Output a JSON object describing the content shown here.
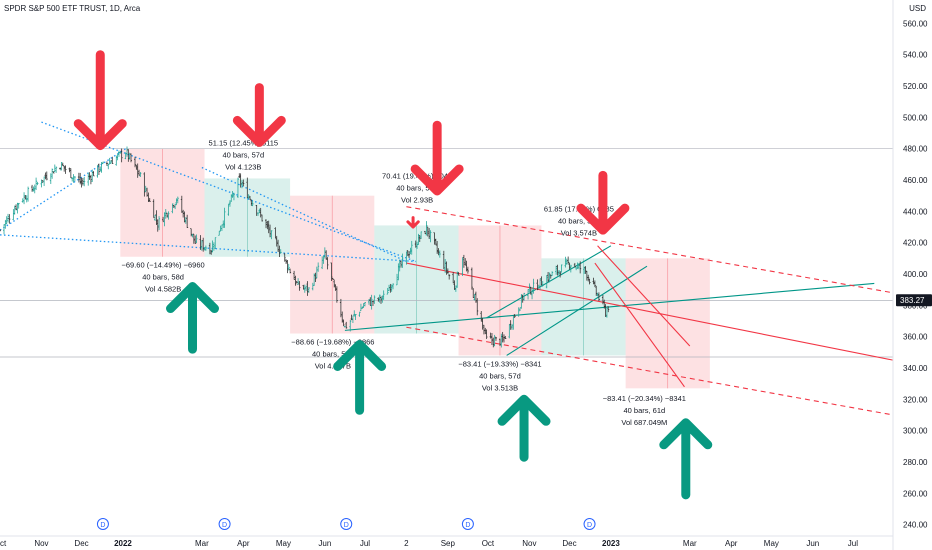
{
  "chart_data": {
    "type": "candlestick",
    "title": "SPDR S&P 500 ETF TRUST, 1D, Arca",
    "currency": "USD",
    "y_ticks": [
      240,
      260,
      280,
      300,
      320,
      340,
      360,
      380,
      400,
      420,
      440,
      460,
      480,
      500,
      520,
      540,
      560
    ],
    "ylim": [
      234,
      566
    ],
    "x_ticks": [
      "Oct",
      "Nov",
      "Dec",
      "2022",
      "Mar",
      "Apr",
      "May",
      "Jun",
      "Jul",
      "2",
      "Sep",
      "Oct",
      "Nov",
      "Dec",
      "2023",
      "Mar",
      "Apr",
      "May",
      "Jun",
      "Jul"
    ],
    "x_tick_dates": [
      "2021-10-01",
      "2021-11-01",
      "2021-12-01",
      "2022-01-01",
      "2022-03-01",
      "2022-04-01",
      "2022-05-01",
      "2022-06-01",
      "2022-07-01",
      "2022-08-01",
      "2022-09-01",
      "2022-10-01",
      "2022-11-01",
      "2022-12-01",
      "2023-01-01",
      "2023-03-01",
      "2023-04-01",
      "2023-05-01",
      "2023-06-01",
      "2023-07-01"
    ],
    "x_range": [
      "2021-10-01",
      "2023-07-31"
    ],
    "dividend_markers": [
      "2021-12-17",
      "2022-03-18",
      "2022-06-17",
      "2022-09-16",
      "2022-12-16"
    ],
    "dividend_label": "D",
    "last_price": "383.27",
    "price_series": {
      "color_up": "#26a69a",
      "color_down": "#333333",
      "closes": [
        {
          "x": "2021-10-01",
          "y": 428
        },
        {
          "x": "2021-10-15",
          "y": 446
        },
        {
          "x": "2021-11-01",
          "y": 460
        },
        {
          "x": "2021-11-15",
          "y": 470
        },
        {
          "x": "2021-12-01",
          "y": 458
        },
        {
          "x": "2021-12-15",
          "y": 468
        },
        {
          "x": "2022-01-03",
          "y": 478
        },
        {
          "x": "2022-01-14",
          "y": 462
        },
        {
          "x": "2022-01-27",
          "y": 432
        },
        {
          "x": "2022-02-10",
          "y": 448
        },
        {
          "x": "2022-02-24",
          "y": 420
        },
        {
          "x": "2022-03-08",
          "y": 416
        },
        {
          "x": "2022-03-29",
          "y": 460
        },
        {
          "x": "2022-04-12",
          "y": 440
        },
        {
          "x": "2022-04-29",
          "y": 414
        },
        {
          "x": "2022-05-12",
          "y": 392
        },
        {
          "x": "2022-05-20",
          "y": 390
        },
        {
          "x": "2022-06-01",
          "y": 412
        },
        {
          "x": "2022-06-16",
          "y": 366
        },
        {
          "x": "2022-07-01",
          "y": 381
        },
        {
          "x": "2022-07-15",
          "y": 385
        },
        {
          "x": "2022-08-01",
          "y": 412
        },
        {
          "x": "2022-08-16",
          "y": 429
        },
        {
          "x": "2022-09-06",
          "y": 392
        },
        {
          "x": "2022-09-12",
          "y": 411
        },
        {
          "x": "2022-09-30",
          "y": 358
        },
        {
          "x": "2022-10-12",
          "y": 357
        },
        {
          "x": "2022-10-28",
          "y": 387
        },
        {
          "x": "2022-11-15",
          "y": 398
        },
        {
          "x": "2022-12-01",
          "y": 407
        },
        {
          "x": "2022-12-13",
          "y": 402
        },
        {
          "x": "2022-12-28",
          "y": 376
        },
        {
          "x": "2023-01-01",
          "y": 383
        }
      ]
    },
    "range_boxes": [
      {
        "from": "2021-12-30",
        "to": "2022-03-03",
        "top": 480,
        "bottom": 411,
        "kind": "down"
      },
      {
        "from": "2022-03-03",
        "to": "2022-05-06",
        "top": 461,
        "bottom": 411,
        "kind": "up"
      },
      {
        "from": "2022-05-06",
        "to": "2022-07-08",
        "top": 450,
        "bottom": 362,
        "kind": "down"
      },
      {
        "from": "2022-07-08",
        "to": "2022-09-09",
        "top": 431,
        "bottom": 362,
        "kind": "up"
      },
      {
        "from": "2022-09-09",
        "to": "2022-11-10",
        "top": 431,
        "bottom": 348,
        "kind": "down"
      },
      {
        "from": "2022-11-10",
        "to": "2023-01-12",
        "top": 410,
        "bottom": 348,
        "kind": "up"
      },
      {
        "from": "2023-01-12",
        "to": "2023-03-16",
        "top": 410,
        "bottom": 327,
        "kind": "down"
      }
    ],
    "trend_lines": [
      {
        "from": [
          "2021-10-01",
          428
        ],
        "to": [
          "2022-01-03",
          480
        ],
        "color": "#2196f3",
        "style": "dotted"
      },
      {
        "from": [
          "2021-10-01",
          425
        ],
        "to": [
          "2022-08-08",
          408
        ],
        "color": "#2196f3",
        "style": "dotted"
      },
      {
        "from": [
          "2021-11-01",
          497
        ],
        "to": [
          "2022-08-08",
          408
        ],
        "color": "#2196f3",
        "style": "dotted"
      },
      {
        "from": [
          "2022-03-01",
          468
        ],
        "to": [
          "2022-08-01",
          408
        ],
        "color": "#2196f3",
        "style": "dotted"
      },
      {
        "from": [
          "2022-06-16",
          364
        ],
        "to": [
          "2023-07-17",
          394
        ],
        "color": "#009688",
        "style": "solid"
      },
      {
        "from": [
          "2022-10-15",
          348
        ],
        "to": [
          "2023-01-28",
          405
        ],
        "color": "#009688",
        "style": "solid"
      },
      {
        "from": [
          "2022-09-30",
          372
        ],
        "to": [
          "2023-01-01",
          418
        ],
        "color": "#009688",
        "style": "solid"
      },
      {
        "from": [
          "2022-08-01",
          407
        ],
        "to": [
          "2023-07-31",
          345
        ],
        "color": "#f23645",
        "style": "solid"
      },
      {
        "from": [
          "2022-08-01",
          443
        ],
        "to": [
          "2023-07-31",
          388
        ],
        "color": "#f23645",
        "style": "dashed"
      },
      {
        "from": [
          "2022-08-01",
          366
        ],
        "to": [
          "2023-07-31",
          310
        ],
        "color": "#f23645",
        "style": "dashed"
      },
      {
        "from": [
          "2022-12-22",
          418
        ],
        "to": [
          "2023-03-01",
          354
        ],
        "color": "#f23645",
        "style": "solid"
      },
      {
        "from": [
          "2022-12-20",
          407
        ],
        "to": [
          "2023-02-25",
          328
        ],
        "color": "#f23645",
        "style": "solid"
      }
    ],
    "horizontal_lines": [
      {
        "y": 480
      },
      {
        "y": 383
      },
      {
        "y": 347
      }
    ],
    "annotations": [
      {
        "lines": [
          "51.15 (12.45%) 5115",
          "40 bars, 57d",
          "Vol 4.123B"
        ],
        "x": "2022-04-01",
        "y": 482
      },
      {
        "lines": [
          "−69.60 (−14.49%) −6960",
          "40 bars, 58d",
          "Vol 4.582B"
        ],
        "x": "2022-01-31",
        "y": 404
      },
      {
        "lines": [
          "70.41 (19.48%) 7041",
          "40 bars, 57d",
          "Vol 2.93B"
        ],
        "x": "2022-08-09",
        "y": 461
      },
      {
        "lines": [
          "−88.66 (−19.68%) −8866",
          "40 bars, 57d",
          "Vol 4.517B"
        ],
        "x": "2022-06-07",
        "y": 355
      },
      {
        "lines": [
          "61.85 (17.76%) 6185",
          "40 bars, 57d",
          "Vol 3.574B"
        ],
        "x": "2022-12-08",
        "y": 440
      },
      {
        "lines": [
          "−83.41 (−19.33%) −8341",
          "40 bars, 57d",
          "Vol 3.513B"
        ],
        "x": "2022-10-10",
        "y": 341
      },
      {
        "lines": [
          "−83.41 (−20.34%) −8341",
          "40 bars, 61d",
          "Vol 687.049M"
        ],
        "x": "2023-01-26",
        "y": 319
      }
    ],
    "arrows": [
      {
        "dir": "down",
        "x": "2021-12-15",
        "y_top": 540,
        "y_bottom": 482,
        "color": "#f23645"
      },
      {
        "dir": "down",
        "x": "2022-04-13",
        "y_top": 519,
        "y_bottom": 484,
        "color": "#f23645"
      },
      {
        "dir": "down",
        "x": "2022-08-24",
        "y_top": 495,
        "y_bottom": 453,
        "color": "#f23645"
      },
      {
        "dir": "down",
        "x": "2022-12-26",
        "y_top": 463,
        "y_bottom": 428,
        "color": "#f23645"
      },
      {
        "dir": "down",
        "x": "2022-08-06",
        "y_top": 436,
        "y_bottom": 430,
        "color": "#f23645"
      },
      {
        "dir": "up",
        "x": "2022-02-22",
        "y_top": 392,
        "y_bottom": 352,
        "color": "#089981"
      },
      {
        "dir": "up",
        "x": "2022-06-27",
        "y_top": 355,
        "y_bottom": 313,
        "color": "#089981"
      },
      {
        "dir": "up",
        "x": "2022-10-28",
        "y_top": 320,
        "y_bottom": 283,
        "color": "#089981"
      },
      {
        "dir": "up",
        "x": "2023-02-26",
        "y_top": 305,
        "y_bottom": 259,
        "color": "#089981"
      }
    ],
    "colors": {
      "up_box_fill": "rgba(8,153,129,0.15)",
      "down_box_fill": "rgba(242,54,69,0.15)",
      "up_box_border": "#089981",
      "down_box_border": "#f23645",
      "grid": "#ffffff",
      "axis_text": "#131722",
      "price_label_bg": "#131722"
    }
  }
}
